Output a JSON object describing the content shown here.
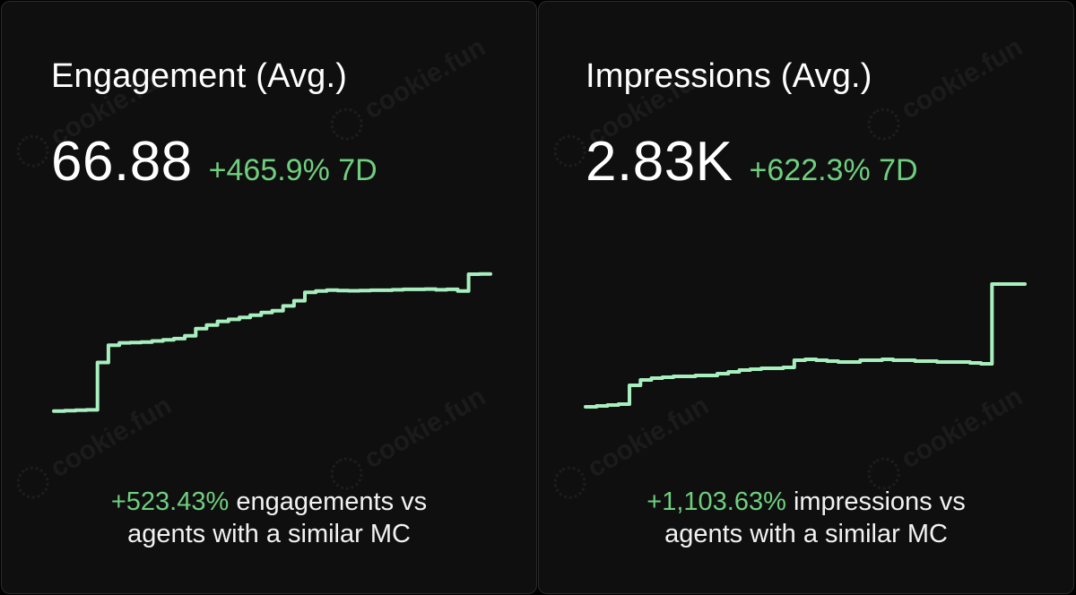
{
  "watermark_text": "cookie.fun",
  "cards": [
    {
      "title": "Engagement (Avg.)",
      "value": "66.88",
      "change": "+465.9% 7D",
      "footer_pct": "+523.43%",
      "footer_line1": " engagements vs",
      "footer_line2": "agents with a similar MC"
    },
    {
      "title": "Impressions (Avg.)",
      "value": "2.83K",
      "change": "+622.3% 7D",
      "footer_pct": "+1,103.63%",
      "footer_line1": " impressions vs",
      "footer_line2": "agents with a similar MC"
    }
  ],
  "colors": {
    "line": "#a8efbf",
    "positive": "#6fcf7f"
  },
  "chart_data": [
    {
      "type": "line",
      "title": "",
      "xlabel": "",
      "ylabel": "",
      "grid": false,
      "x": [
        0,
        1,
        2,
        3,
        4,
        5,
        6,
        7,
        8,
        9,
        10,
        11,
        12,
        13,
        14,
        15,
        16,
        17,
        18,
        19,
        20,
        21,
        22,
        23,
        24,
        25,
        26,
        27,
        28,
        29,
        30,
        31,
        32,
        33,
        34,
        35,
        36,
        37,
        38,
        39,
        40
      ],
      "series": [
        {
          "values": [
            10.7,
            10.9,
            11.1,
            11.2,
            31.2,
            38.5,
            39.5,
            39.6,
            39.8,
            40.3,
            40.8,
            41.3,
            42.5,
            45.5,
            47.0,
            48.6,
            49.4,
            50.2,
            51.2,
            52.3,
            53.1,
            55.1,
            57.3,
            60.8,
            61.4,
            61.8,
            61.6,
            61.5,
            61.6,
            61.7,
            61.7,
            61.9,
            62.1,
            62.1,
            62.2,
            61.9,
            62.1,
            61.4,
            68.5,
            68.6,
            68.6
          ]
        }
      ],
      "ylim": [
        0,
        70
      ]
    },
    {
      "type": "line",
      "title": "",
      "xlabel": "",
      "ylabel": "",
      "grid": false,
      "x": [
        0,
        1,
        2,
        3,
        4,
        5,
        6,
        7,
        8,
        9,
        10,
        11,
        12,
        13,
        14,
        15,
        16,
        17,
        18,
        19,
        20,
        21,
        22,
        23,
        24,
        25,
        26,
        27,
        28,
        29,
        30,
        31,
        32,
        33,
        34,
        35,
        36,
        37,
        38,
        39,
        40
      ],
      "series": [
        {
          "values": [
            0.28,
            0.29,
            0.3,
            0.31,
            0.52,
            0.58,
            0.6,
            0.61,
            0.62,
            0.62,
            0.63,
            0.63,
            0.65,
            0.67,
            0.69,
            0.7,
            0.71,
            0.71,
            0.72,
            0.8,
            0.81,
            0.8,
            0.79,
            0.78,
            0.78,
            0.8,
            0.8,
            0.81,
            0.8,
            0.8,
            0.79,
            0.79,
            0.78,
            0.78,
            0.78,
            0.77,
            0.76,
            1.65,
            1.65,
            1.65,
            1.65
          ]
        }
      ],
      "ylim": [
        0,
        1.8
      ]
    }
  ]
}
